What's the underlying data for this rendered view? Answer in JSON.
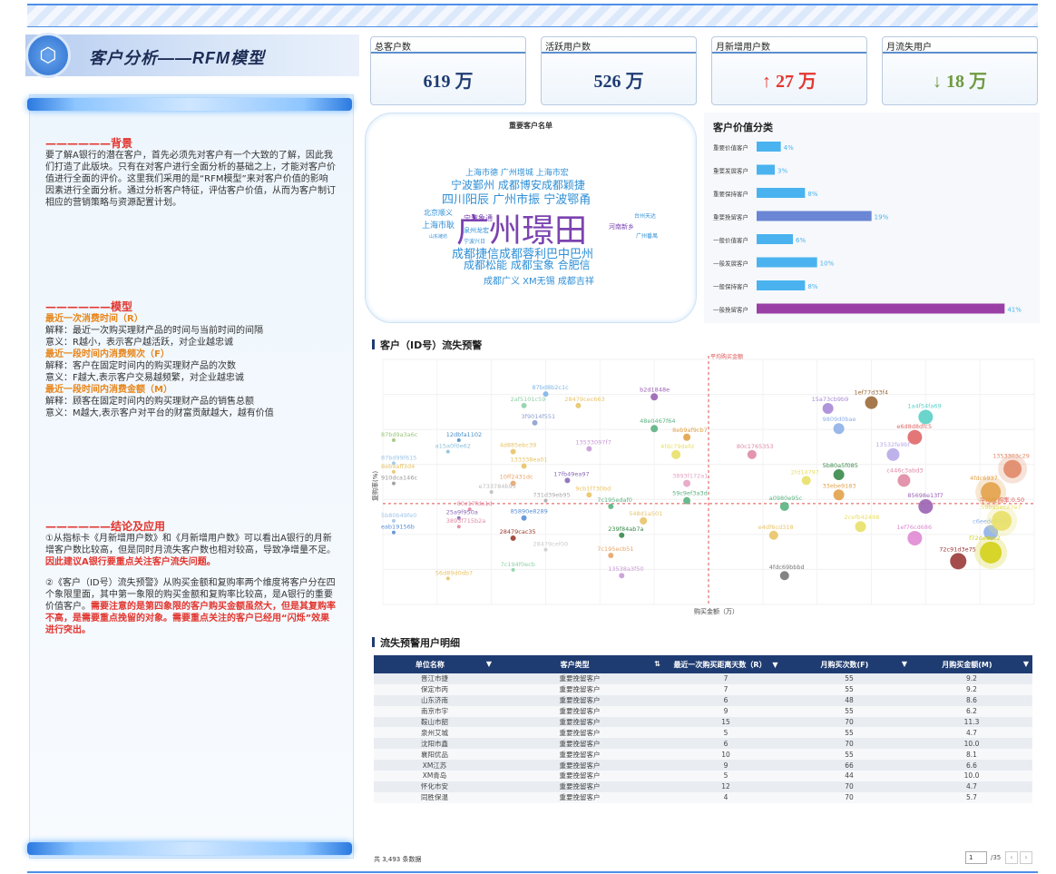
{
  "title": "客户分析——RFM模型",
  "left_panel": {
    "background": {
      "heading": "——————背景",
      "text": "要了解A银行的潜在客户，首先必须先对客户有一个大致的了解，因此我们打造了此版块。只有在对客户进行全面分析的基础之上，才能对客户价值进行全面的评价。这里我们采用的是“RFM模型”来对客户价值的影响因素进行全面分析。通过分析客户特征，评估客户价值，从而为客户制订相应的营销策略与资源配置计划。"
    },
    "model": {
      "heading": "——————模型",
      "r_title": "最近一次消费时间（R）",
      "r_explain": "解释：最近一次购买理财产品的时间与当前时间的间隔",
      "r_meaning": "意义：R越小，表示客户越活跃，对企业越忠诚",
      "f_title": "最近一段时间内消费频次（F）",
      "f_explain": "解释：客户在固定时间内的购买理财产品的次数",
      "f_meaning": "意义：F越大,表示客户交易越频繁，对企业越忠诚",
      "m_title": "最近一段时间内消费金额（M）",
      "m_explain": "解释：顾客在固定时间内的购买理财产品的销售总额",
      "m_meaning": "意义：M越大,表示客户对平台的财富贡献越大，越有价值"
    },
    "conclusion": {
      "heading": "——————结论及应用",
      "p1": "①从指标卡《月新增用户数》和《月新增用户数》可以看出A银行的月新增客户数比较高，但是同时月流失客户数也相对较高，导致净增量不足。",
      "p1_red": "因此建议A银行要重点关注客户流失问题。",
      "p2": "②《客户（ID号）流失预警》从购买金额和复购率两个维度将客户分在四个象限里面，其中第一象限的购买金额和复购率比较高，是A银行的重要价值客户。",
      "p2_red": "需要注意的是第四象限的客户购买金额虽然大，但是其复购率不高，是需要重点挽留的对象。需要重点关注的客户已经用“闪烁”效果进行突出。"
    }
  },
  "kpis": [
    {
      "label": "总客户数",
      "value": "619 万",
      "color": "#1f3c72"
    },
    {
      "label": "活跃用户数",
      "value": "526 万",
      "color": "#1f3c72"
    },
    {
      "label": "月新增用户数",
      "value": "↑ 27 万",
      "color": "#e2362f"
    },
    {
      "label": "月流失用户",
      "value": "↓ 18 万",
      "color": "#6e9a3f"
    }
  ],
  "wordcloud": {
    "title": "重要客户名单",
    "words": [
      {
        "t": "广州璟田",
        "s": 36,
        "c": "#7b43b0"
      },
      {
        "t": "成都捷信成都蓉利巴中巴州",
        "s": 13,
        "c": "#2f8fd6"
      },
      {
        "t": "四川阳辰 广州市振 宁波鄂甬",
        "s": 13,
        "c": "#2f8fd6"
      },
      {
        "t": "宁波鄞州 成都博安成都颖捷",
        "s": 12,
        "c": "#2f8fd6"
      },
      {
        "t": "上海市德 广州增城 上海市宏",
        "s": 9,
        "c": "#2f8fd6"
      },
      {
        "t": "成都松能 成都宝象 合肥信",
        "s": 12,
        "c": "#2f8fd6"
      },
      {
        "t": "成都广义 XM无锡 成都吉祥",
        "s": 10,
        "c": "#2f8fd6"
      },
      {
        "t": "北京顺义",
        "s": 8,
        "c": "#2f8fd6"
      },
      {
        "t": "上海市耿",
        "s": 9,
        "c": "#2f8fd6"
      },
      {
        "t": "宁波象通",
        "s": 8,
        "c": "#7b43b0"
      },
      {
        "t": "泉州龙宏",
        "s": 7,
        "c": "#2f8fd6"
      },
      {
        "t": "河南新乡",
        "s": 7,
        "c": "#7b43b0"
      },
      {
        "t": "台州天达",
        "s": 6,
        "c": "#2f8fd6"
      },
      {
        "t": "广州番禺",
        "s": 6,
        "c": "#2f8fd6"
      },
      {
        "t": "山东潍坊",
        "s": 5,
        "c": "#2f8fd6"
      },
      {
        "t": "宁波兴日",
        "s": 6,
        "c": "#2f8fd6"
      }
    ]
  },
  "chart_data": [
    {
      "type": "bar",
      "title": "客户价值分类",
      "categories": [
        "重要价值客户",
        "重要发展客户",
        "重要保持客户",
        "重要挽留客户",
        "一般价值客户",
        "一般发展客户",
        "一般保持客户",
        "一般挽留客户"
      ],
      "values": [
        4,
        3,
        8,
        19,
        6,
        10,
        8,
        41
      ],
      "labels": [
        "4%",
        "3%",
        "8%",
        "19%",
        "6%",
        "10%",
        "8%",
        "41%"
      ],
      "colors": [
        "#4ab3ef",
        "#4ab3ef",
        "#4ab3ef",
        "#6a86d4",
        "#4ab3ef",
        "#4ab3ef",
        "#4ab3ef",
        "#9a3fa6"
      ]
    },
    {
      "type": "scatter",
      "title": "客户（ID号）流失预警",
      "xlabel": "购买金额（万）",
      "ylabel": "复购率(%)",
      "ref_x_label": "平均购买金额",
      "ref_y_label": "平均复购率:0.50",
      "points": [
        {
          "id": "87bd8b2c1c",
          "x": 15,
          "y": 0.88,
          "r": 3,
          "c": "#7fb5e6"
        },
        {
          "id": "2af5101c59",
          "x": 13,
          "y": 0.84,
          "r": 3,
          "c": "#8fd1a8"
        },
        {
          "id": "28479cec663",
          "x": 18,
          "y": 0.84,
          "r": 3,
          "c": "#e8c468"
        },
        {
          "id": "3f9014f551",
          "x": 14,
          "y": 0.78,
          "r": 3,
          "c": "#8ea0d0"
        },
        {
          "id": "b2d1848e",
          "x": 25,
          "y": 0.87,
          "r": 4,
          "c": "#9a62b4"
        },
        {
          "id": "48e0467f64",
          "x": 25,
          "y": 0.76,
          "r": 4,
          "c": "#5bb381"
        },
        {
          "id": "8eb9af9cb7",
          "x": 28,
          "y": 0.73,
          "r": 4,
          "c": "#e2a24a"
        },
        {
          "id": "4fdc79defd",
          "x": 27,
          "y": 0.67,
          "r": 5,
          "c": "#e8e068"
        },
        {
          "id": "87bd9a3a6c",
          "x": 1,
          "y": 0.72,
          "r": 2,
          "c": "#9ac77a"
        },
        {
          "id": "12dbfa1102",
          "x": 7,
          "y": 0.72,
          "r": 2,
          "c": "#4d8fc9"
        },
        {
          "id": "a15a0f0e62",
          "x": 6,
          "y": 0.68,
          "r": 2,
          "c": "#8ec1d9"
        },
        {
          "id": "4d885ebc39",
          "x": 12,
          "y": 0.68,
          "r": 3,
          "c": "#e8c468"
        },
        {
          "id": "13533097f7",
          "x": 19,
          "y": 0.69,
          "r": 3,
          "c": "#c99ad6"
        },
        {
          "id": "87bd99f615",
          "x": 1,
          "y": 0.64,
          "r": 2,
          "c": "#9fc6e8"
        },
        {
          "id": "8eb9aff3d4",
          "x": 1,
          "y": 0.61,
          "r": 2,
          "c": "#e8c468"
        },
        {
          "id": "910dca146c",
          "x": 1,
          "y": 0.57,
          "r": 2,
          "c": "#999"
        },
        {
          "id": "133338ea01",
          "x": 13,
          "y": 0.63,
          "r": 3,
          "c": "#e8c468"
        },
        {
          "id": "10ff2431dc",
          "x": 12,
          "y": 0.57,
          "r": 3,
          "c": "#e8a468"
        },
        {
          "id": "17fb49ea97",
          "x": 17,
          "y": 0.58,
          "r": 3,
          "c": "#8a6ab8"
        },
        {
          "id": "e733784b95",
          "x": 10,
          "y": 0.54,
          "r": 2,
          "c": "#bbb"
        },
        {
          "id": "731d39eb95",
          "x": 15,
          "y": 0.51,
          "r": 2,
          "c": "#aaa"
        },
        {
          "id": "9cb1f730bd",
          "x": 19,
          "y": 0.53,
          "r": 3,
          "c": "#e8c468"
        },
        {
          "id": "7c195edaf0",
          "x": 21,
          "y": 0.49,
          "r": 3,
          "c": "#5bb381"
        },
        {
          "id": "3893f172a1",
          "x": 28,
          "y": 0.57,
          "r": 4,
          "c": "#e4a4c4"
        },
        {
          "id": "59c9ef3a3d",
          "x": 28,
          "y": 0.51,
          "r": 4,
          "c": "#5bb381"
        },
        {
          "id": "80c1765353",
          "x": 34,
          "y": 0.67,
          "r": 5,
          "c": "#e08aa4"
        },
        {
          "id": "80c17fda1d",
          "x": 8,
          "y": 0.48,
          "r": 2,
          "c": "#e08aa4"
        },
        {
          "id": "25a9f950a",
          "x": 7,
          "y": 0.45,
          "r": 2,
          "c": "#8a6ab8"
        },
        {
          "id": "3893f715b2a",
          "x": 7,
          "y": 0.42,
          "r": 2,
          "c": "#e08aa4"
        },
        {
          "id": "85890e8289",
          "x": 13,
          "y": 0.45,
          "r": 3,
          "c": "#5b8fd6"
        },
        {
          "id": "548d1a501",
          "x": 24,
          "y": 0.44,
          "r": 4,
          "c": "#e8c468"
        },
        {
          "id": "5b80b49fe0",
          "x": 1,
          "y": 0.44,
          "r": 2,
          "c": "#9fc6e8"
        },
        {
          "id": "eab19156b",
          "x": 1,
          "y": 0.4,
          "r": 2,
          "c": "#5b8fd6"
        },
        {
          "id": "28479cac35",
          "x": 12,
          "y": 0.38,
          "r": 3,
          "c": "#9b3a2a"
        },
        {
          "id": "239f84ab7a",
          "x": 22,
          "y": 0.39,
          "r": 3,
          "c": "#3a8a4a"
        },
        {
          "id": "28479cef00",
          "x": 15,
          "y": 0.34,
          "r": 2,
          "c": "#ccc"
        },
        {
          "id": "7c195ecb51",
          "x": 21,
          "y": 0.32,
          "r": 3,
          "c": "#e8a468"
        },
        {
          "id": "7c194f0ecb",
          "x": 12,
          "y": 0.27,
          "r": 2,
          "c": "#8fd1a8"
        },
        {
          "id": "13538a3f50",
          "x": 22,
          "y": 0.25,
          "r": 3,
          "c": "#c99ad6"
        },
        {
          "id": "56d89d0db7",
          "x": 6,
          "y": 0.24,
          "r": 2,
          "c": "#e8c468"
        },
        {
          "id": "a0980e95c",
          "x": 37,
          "y": 0.49,
          "r": 5,
          "c": "#5bb381"
        },
        {
          "id": "e4df6cd318",
          "x": 36,
          "y": 0.39,
          "r": 5,
          "c": "#e8c468"
        },
        {
          "id": "4fdc69bbbd",
          "x": 37,
          "y": 0.25,
          "r": 5,
          "c": "#777"
        },
        {
          "id": "2fd14797",
          "x": 39,
          "y": 0.58,
          "r": 5,
          "c": "#e8e068"
        },
        {
          "id": "5b80a5f085",
          "x": 42,
          "y": 0.6,
          "r": 6,
          "c": "#3a8a4a"
        },
        {
          "id": "33ebe9183",
          "x": 42,
          "y": 0.53,
          "r": 6,
          "c": "#e2a24a"
        },
        {
          "id": "15a73cb9b9",
          "x": 41,
          "y": 0.83,
          "r": 6,
          "c": "#a88ad6"
        },
        {
          "id": "9809d0bae",
          "x": 42,
          "y": 0.76,
          "r": 6,
          "c": "#8fb0e8"
        },
        {
          "id": "1ef77d33f4",
          "x": 45,
          "y": 0.85,
          "r": 7,
          "c": "#9b6a3a"
        },
        {
          "id": "1a4f54fa69",
          "x": 50,
          "y": 0.8,
          "r": 8,
          "c": "#5bd0c6"
        },
        {
          "id": "e6d8d8dfc5",
          "x": 49,
          "y": 0.73,
          "r": 8,
          "c": "#e06868"
        },
        {
          "id": "13532fe9bf",
          "x": 47,
          "y": 0.67,
          "r": 7,
          "c": "#b8a8e8"
        },
        {
          "id": "c446c3abd3",
          "x": 48,
          "y": 0.58,
          "r": 7,
          "c": "#e08aa4"
        },
        {
          "id": "2cefb42498",
          "x": 44,
          "y": 0.42,
          "r": 6,
          "c": "#e8e068"
        },
        {
          "id": "85698e13f7",
          "x": 50,
          "y": 0.49,
          "r": 8,
          "c": "#9a62b4"
        },
        {
          "id": "1ef76cd686",
          "x": 49,
          "y": 0.38,
          "r": 8,
          "c": "#e08ad4"
        },
        {
          "id": "c6eedc94f4",
          "x": 56,
          "y": 0.4,
          "r": 8,
          "c": "#8fb0e8"
        },
        {
          "id": "72c91d3e75",
          "x": 53,
          "y": 0.3,
          "r": 9,
          "c": "#9b3a3a"
        },
        {
          "id": "1353303c29",
          "x": 58,
          "y": 0.62,
          "r": 10,
          "c": "#e08a68"
        },
        {
          "id": "4fdc6937",
          "x": 56,
          "y": 0.54,
          "r": 11,
          "c": "#e2a24a"
        },
        {
          "id": "59ba5ec27e7",
          "x": 57,
          "y": 0.44,
          "r": 11,
          "c": "#e8e068"
        },
        {
          "id": "f72de9ec2",
          "x": 56,
          "y": 0.33,
          "r": 12,
          "c": "#d4d018"
        }
      ]
    }
  ],
  "scatter_labels_extra": {
    "y_axis_text": "复购率(%)"
  },
  "table": {
    "title": "流失预警用户明细",
    "headers": [
      "单位名称",
      "客户类型",
      "最近一次购买距离天数（R）",
      "月购买次数(F)",
      "月购买金额(M)"
    ],
    "rows": [
      [
        "晋江市捷",
        "重要挽留客户",
        "7",
        "55",
        "9.2"
      ],
      [
        "保定市丙",
        "重要挽留客户",
        "7",
        "55",
        "9.2"
      ],
      [
        "山东济南",
        "重要挽留客户",
        "6",
        "48",
        "8.6"
      ],
      [
        "南京市宇",
        "重要挽留客户",
        "9",
        "55",
        "6.2"
      ],
      [
        "鞍山市韶",
        "重要挽留客户",
        "15",
        "70",
        "11.3"
      ],
      [
        "泉州艾城",
        "重要挽留客户",
        "5",
        "55",
        "4.7"
      ],
      [
        "沈阳市鑫",
        "重要挽留客户",
        "6",
        "70",
        "10.0"
      ],
      [
        "襄阳优品",
        "重要挽留客户",
        "10",
        "55",
        "8.1"
      ],
      [
        "XM江苏",
        "重要挽留客户",
        "9",
        "66",
        "6.6"
      ],
      [
        "XM青岛",
        "重要挽留客户",
        "5",
        "44",
        "10.0"
      ],
      [
        "怀化市安",
        "重要挽留客户",
        "12",
        "70",
        "4.7"
      ],
      [
        "同胜保温",
        "重要挽留客户",
        "4",
        "70",
        "5.7"
      ]
    ],
    "footer_count": "共 3,493 条数据",
    "page_input": "1",
    "page_total": "/35"
  }
}
